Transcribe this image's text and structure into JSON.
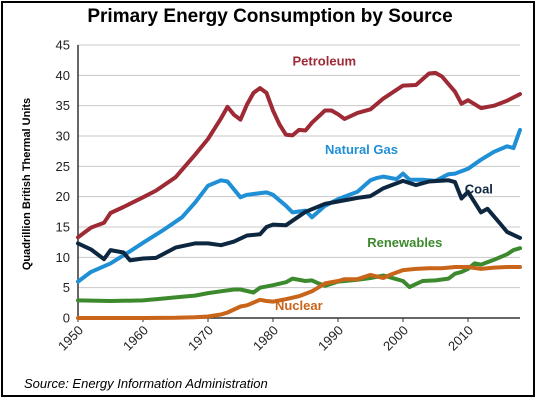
{
  "chart_data": {
    "type": "line",
    "title": "Primary Energy Consumption by Source",
    "ylabel": "Quadrillion British Thermal Units",
    "xlabel": "",
    "source": "Source: Energy Information Administration",
    "xlim": [
      1950,
      2018
    ],
    "ylim": [
      0,
      45
    ],
    "y_ticks": [
      0,
      5,
      10,
      15,
      20,
      25,
      30,
      35,
      40,
      45
    ],
    "x_ticks": [
      1950,
      1960,
      1970,
      1980,
      1990,
      2000,
      2010
    ],
    "grid": true,
    "legend": "inline labels",
    "series": [
      {
        "name": "Petroleum",
        "color": "#9e2a35",
        "x": [
          1950,
          1952,
          1954,
          1955,
          1957,
          1960,
          1962,
          1965,
          1968,
          1970,
          1972,
          1973,
          1974,
          1975,
          1976,
          1977,
          1978,
          1979,
          1980,
          1981,
          1982,
          1983,
          1984,
          1985,
          1986,
          1988,
          1989,
          1990,
          1991,
          1993,
          1995,
          1997,
          2000,
          2002,
          2004,
          2005,
          2006,
          2008,
          2009,
          2010,
          2012,
          2014,
          2016,
          2018
        ],
        "y": [
          13.3,
          14.9,
          15.7,
          17.3,
          18.3,
          19.9,
          21.0,
          23.2,
          26.9,
          29.5,
          32.9,
          34.8,
          33.5,
          32.7,
          35.2,
          37.1,
          37.9,
          37.1,
          34.2,
          31.9,
          30.2,
          30.1,
          31.0,
          30.9,
          32.2,
          34.2,
          34.2,
          33.6,
          32.8,
          33.8,
          34.4,
          36.2,
          38.3,
          38.4,
          40.3,
          40.4,
          39.8,
          37.3,
          35.3,
          35.9,
          34.6,
          35.0,
          35.8,
          36.9
        ]
      },
      {
        "name": "Natural Gas",
        "color": "#1f8fd6",
        "x": [
          1950,
          1952,
          1955,
          1958,
          1960,
          1963,
          1966,
          1968,
          1970,
          1972,
          1973,
          1975,
          1976,
          1979,
          1980,
          1982,
          1983,
          1985,
          1986,
          1988,
          1990,
          1993,
          1995,
          1996,
          1997,
          1999,
          2000,
          2001,
          2003,
          2005,
          2007,
          2008,
          2010,
          2012,
          2014,
          2016,
          2017,
          2018
        ],
        "y": [
          6.0,
          7.6,
          9.0,
          11.0,
          12.4,
          14.4,
          16.6,
          19.0,
          21.8,
          22.7,
          22.5,
          19.9,
          20.3,
          20.7,
          20.3,
          18.5,
          17.4,
          17.7,
          16.6,
          18.5,
          19.6,
          20.8,
          22.7,
          23.1,
          23.3,
          22.9,
          23.8,
          22.8,
          22.8,
          22.6,
          23.7,
          23.8,
          24.6,
          26.1,
          27.4,
          28.3,
          28.0,
          31.0
        ]
      },
      {
        "name": "Coal",
        "color": "#0e2740",
        "x": [
          1950,
          1952,
          1954,
          1955,
          1957,
          1958,
          1960,
          1962,
          1965,
          1968,
          1970,
          1972,
          1974,
          1976,
          1978,
          1979,
          1980,
          1982,
          1985,
          1988,
          1990,
          1993,
          1995,
          1997,
          2000,
          2002,
          2004,
          2007,
          2008,
          2009,
          2010,
          2012,
          2013,
          2015,
          2016,
          2018
        ],
        "y": [
          12.3,
          11.3,
          9.7,
          11.2,
          10.8,
          9.5,
          9.8,
          9.9,
          11.6,
          12.3,
          12.3,
          12.0,
          12.6,
          13.6,
          13.8,
          15.0,
          15.4,
          15.3,
          17.5,
          18.8,
          19.2,
          19.8,
          20.1,
          21.4,
          22.6,
          21.9,
          22.5,
          22.7,
          22.4,
          19.7,
          20.8,
          17.4,
          18.0,
          15.5,
          14.2,
          13.2
        ]
      },
      {
        "name": "Renewables",
        "color": "#3d8a2e",
        "x": [
          1950,
          1955,
          1960,
          1963,
          1966,
          1968,
          1970,
          1972,
          1974,
          1975,
          1977,
          1978,
          1980,
          1982,
          1983,
          1985,
          1986,
          1987,
          1988,
          1990,
          1993,
          1995,
          1997,
          1999,
          2000,
          2001,
          2003,
          2005,
          2007,
          2008,
          2009,
          2010,
          2011,
          2012,
          2014,
          2016,
          2017,
          2018
        ],
        "y": [
          2.9,
          2.8,
          2.9,
          3.2,
          3.5,
          3.7,
          4.1,
          4.4,
          4.7,
          4.7,
          4.2,
          5.0,
          5.4,
          5.9,
          6.5,
          6.1,
          6.2,
          5.7,
          5.3,
          6.0,
          6.3,
          6.6,
          7.0,
          6.4,
          6.1,
          5.1,
          6.1,
          6.2,
          6.5,
          7.3,
          7.6,
          8.1,
          9.0,
          8.8,
          9.6,
          10.5,
          11.2,
          11.5
        ]
      },
      {
        "name": "Nuclear",
        "color": "#c9651a",
        "x": [
          1950,
          1957,
          1960,
          1965,
          1968,
          1970,
          1972,
          1973,
          1975,
          1976,
          1978,
          1979,
          1980,
          1982,
          1984,
          1986,
          1988,
          1990,
          1991,
          1993,
          1995,
          1997,
          1998,
          2000,
          2002,
          2004,
          2006,
          2008,
          2010,
          2012,
          2014,
          2016,
          2018
        ],
        "y": [
          0.0,
          0.0,
          0.0,
          0.04,
          0.14,
          0.24,
          0.58,
          0.91,
          1.9,
          2.1,
          3.0,
          2.8,
          2.7,
          3.1,
          3.6,
          4.4,
          5.7,
          6.1,
          6.4,
          6.4,
          7.1,
          6.6,
          7.1,
          7.9,
          8.1,
          8.2,
          8.2,
          8.4,
          8.4,
          8.1,
          8.3,
          8.4,
          8.4
        ]
      }
    ],
    "labels": [
      {
        "text": "Petroleum",
        "series": "Petroleum",
        "color": "#9e2a35"
      },
      {
        "text": "Natural Gas",
        "series": "Natural Gas",
        "color": "#1f8fd6"
      },
      {
        "text": "Coal",
        "series": "Coal",
        "color": "#0e2740"
      },
      {
        "text": "Renewables",
        "series": "Renewables",
        "color": "#3d8a2e"
      },
      {
        "text": "Nuclear",
        "series": "Nuclear",
        "color": "#c9651a"
      }
    ]
  }
}
